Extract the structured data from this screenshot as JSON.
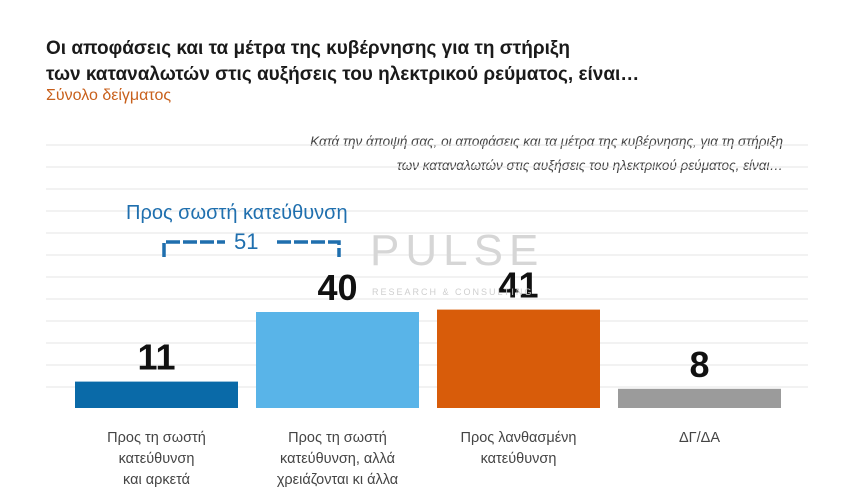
{
  "header": {
    "title_line1": "Οι αποφάσεις και τα μέτρα της κυβέρνησης για τη στήριξη",
    "title_line2": "των καταναλωτών στις αυξήσεις του ηλεκτρικού ρεύματος, είναι…",
    "subtitle": "Σύνολο δείγματος",
    "question_line1": "Κατά την άποψή σας, οι αποφάσεις και τα μέτρα της κυβέρνησης, για τη στήριξη",
    "question_line2": "των καταναλωτών στις αυξήσεις του ηλεκτρικού ρεύματος, είναι…"
  },
  "watermark": {
    "name": "PULSE",
    "tagline": "RESEARCH & CONSULTING"
  },
  "bracket": {
    "label": "Προς σωστή κατεύθυνση",
    "value": "51"
  },
  "chart_data": {
    "type": "bar",
    "categories": [
      [
        "Προς τη σωστή",
        "κατεύθυνση",
        "και αρκετά"
      ],
      [
        "Προς τη σωστή",
        "κατεύθυνση, αλλά",
        "χρειάζονται κι άλλα"
      ],
      [
        "Προς λανθασμένη",
        "κατεύθυνση"
      ],
      [
        "ΔΓ/ΔΑ"
      ]
    ],
    "values": [
      11,
      40,
      41,
      8
    ],
    "colors": [
      "#0a6aa8",
      "#59b4e8",
      "#d85c0a",
      "#9b9b9b"
    ],
    "ylim": [
      0,
      100
    ],
    "grid": true
  },
  "colors": {
    "title": "#1a1a1a",
    "subtitle": "#c8601c",
    "bracket": "#1f6fae",
    "gridline": "#e6e6e6"
  }
}
